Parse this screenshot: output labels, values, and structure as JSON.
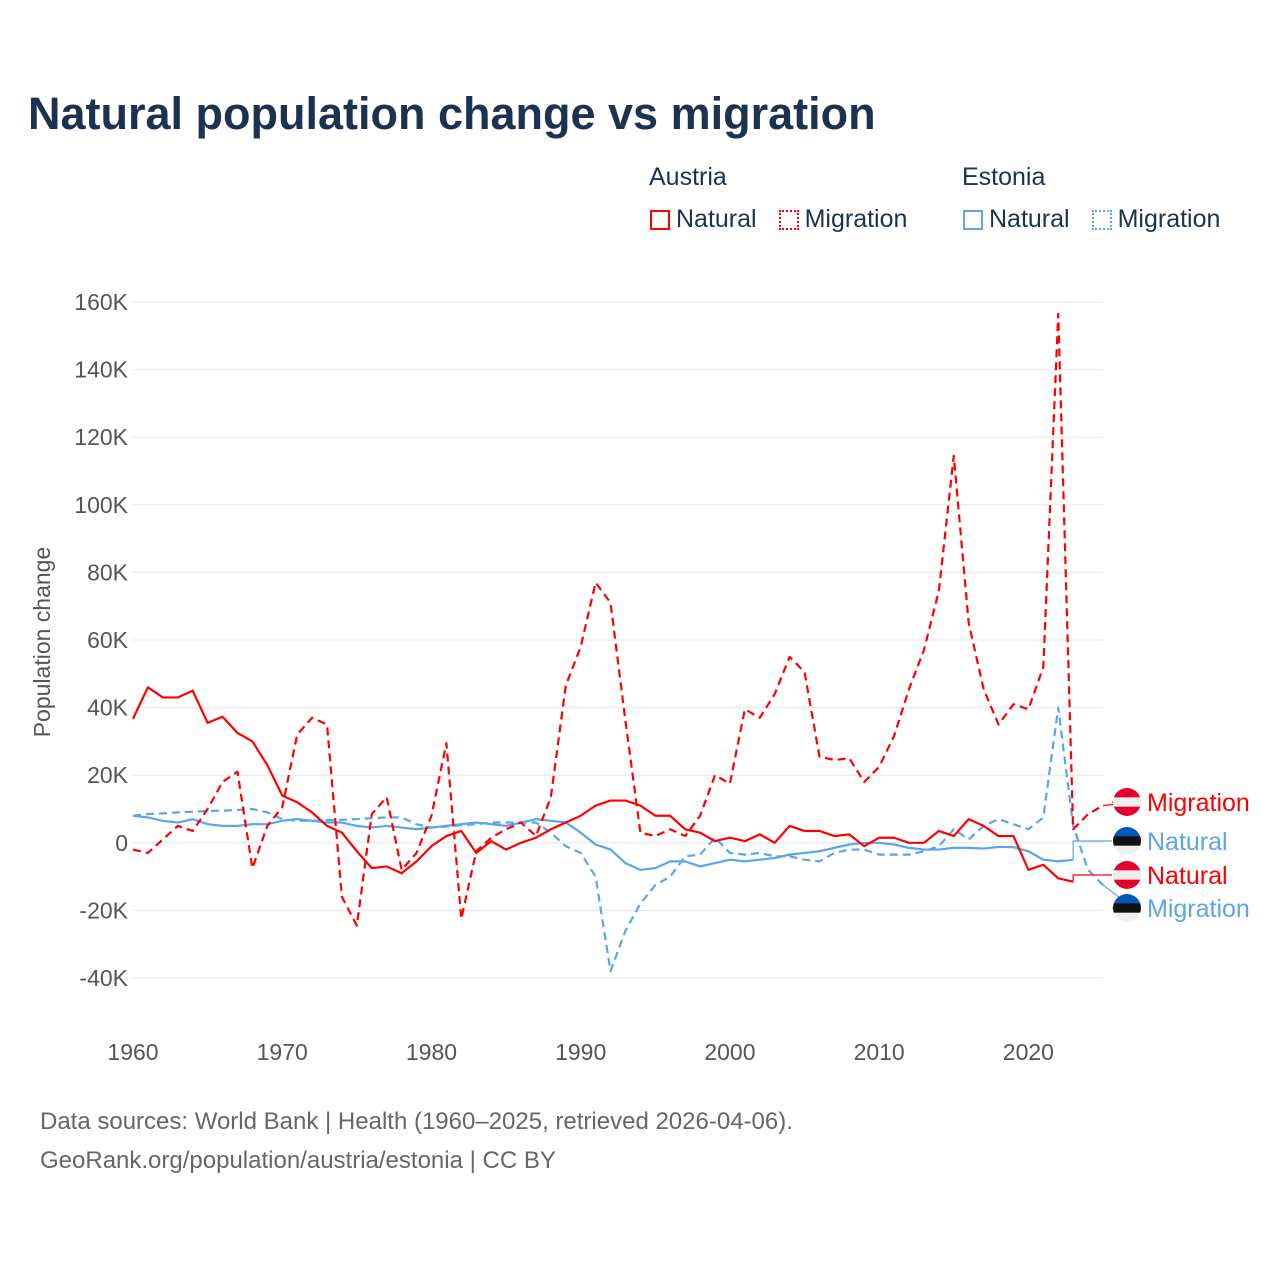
{
  "title": "Natural population change vs migration",
  "legend": {
    "groups": [
      {
        "name": "Austria",
        "items": [
          "Natural",
          "Migration"
        ]
      },
      {
        "name": "Estonia",
        "items": [
          "Natural",
          "Migration"
        ]
      }
    ]
  },
  "colors": {
    "austria": "#ff0000",
    "estonia": "#5aa5ec",
    "text": "#1b3250",
    "grid": "#e6e6e6"
  },
  "chart_data": {
    "type": "line",
    "title": "Natural population change vs migration",
    "xlabel": "",
    "ylabel": "Population change",
    "xlim": [
      1960,
      2025
    ],
    "ylim": [
      -40000,
      160000
    ],
    "x_ticks": [
      1960,
      1970,
      1980,
      1990,
      2000,
      2010,
      2020
    ],
    "x_tick_labels": [
      "1960",
      "1970",
      "1980",
      "1990",
      "2000",
      "2010",
      "2020"
    ],
    "y_ticks": [
      -40000,
      -20000,
      0,
      20000,
      40000,
      60000,
      80000,
      100000,
      120000,
      140000,
      160000
    ],
    "y_tick_labels": [
      "-40K",
      "-20K",
      "0",
      "20K",
      "40K",
      "60K",
      "80K",
      "100K",
      "120K",
      "140K",
      "160K"
    ],
    "grid": true,
    "x_start": 1960,
    "units": "thousands",
    "series": [
      {
        "name": "Austria Natural",
        "country": "austria",
        "dash": false,
        "end_label": "Natural",
        "values": [
          36.7,
          46,
          43,
          43,
          45,
          35.5,
          37.3,
          32.5,
          30,
          23,
          14,
          12,
          9,
          5,
          3,
          -2.5,
          -7.5,
          -7,
          -9,
          -5.5,
          -1,
          2,
          3.5,
          -3,
          0.5,
          -2,
          0,
          1.5,
          4,
          6,
          8,
          11,
          12.5,
          12.5,
          11,
          8,
          8,
          4,
          3,
          0.5,
          1.5,
          0.5,
          2.5,
          0,
          5,
          3.5,
          3.5,
          2,
          2.5,
          -1,
          1.5,
          1.5,
          0,
          0,
          3.5,
          2,
          7,
          5,
          2,
          2,
          -8,
          -6.5,
          -10.5,
          -11.5
        ]
      },
      {
        "name": "Austria Migration",
        "country": "austria",
        "dash": true,
        "end_label": "Migration",
        "values": [
          -2,
          -3,
          1,
          5,
          3.5,
          10,
          18,
          21,
          -7.5,
          5,
          10.5,
          32,
          37,
          35,
          -16,
          -24.5,
          8.5,
          13.5,
          -8,
          -3,
          8,
          29.5,
          -22.5,
          -2.5,
          1.5,
          4,
          6,
          2,
          13.5,
          46.5,
          58,
          77,
          71,
          36,
          3,
          2,
          4,
          2,
          8,
          20,
          17.5,
          39.5,
          37,
          44,
          55,
          50.5,
          25.5,
          24.5,
          25,
          18,
          22.5,
          31.6,
          45.5,
          57,
          74.5,
          114.5,
          65,
          45.5,
          35,
          41,
          39.5,
          52,
          156.5,
          4,
          8.5,
          11
        ]
      },
      {
        "name": "Estonia Natural",
        "country": "estonia",
        "dash": false,
        "end_label": "Natural",
        "values": [
          8,
          7.5,
          6.5,
          6,
          7,
          5.5,
          5,
          5,
          5.5,
          5.5,
          6.5,
          7,
          6.5,
          6,
          6,
          5,
          4.5,
          5,
          4.5,
          4,
          4.5,
          5,
          5.5,
          6,
          5.5,
          5,
          6,
          7,
          6.5,
          6,
          3,
          -0.5,
          -2,
          -6,
          -8,
          -7.5,
          -5.5,
          -5.5,
          -7,
          -6,
          -5,
          -5.5,
          -5,
          -4.5,
          -3.5,
          -3,
          -2.5,
          -1.5,
          -0.5,
          0,
          0,
          -0.5,
          -1.5,
          -2,
          -2,
          -1.5,
          -1.5,
          -1.7,
          -1.2,
          -1.3,
          -2.5,
          -5,
          -5.5,
          -5
        ]
      },
      {
        "name": "Estonia Migration",
        "country": "estonia",
        "dash": true,
        "end_label": "Migration",
        "values": [
          8,
          8.5,
          8.7,
          9,
          9.2,
          9.4,
          9.5,
          9.7,
          10,
          9,
          7,
          6.5,
          6.5,
          6.7,
          6.8,
          7,
          7.3,
          7.5,
          7.5,
          5.5,
          4.5,
          4.8,
          5.2,
          5.5,
          6,
          6,
          6,
          6,
          3,
          -1,
          -3,
          -10,
          -38,
          -26,
          -18,
          -12.5,
          -10,
          -4,
          -3.5,
          1.5,
          -3,
          -3.5,
          -3,
          -4,
          -4,
          -5,
          -5.5,
          -3,
          -2,
          -2,
          -3.5,
          -3.5,
          -3.5,
          -2.5,
          -1,
          4,
          1,
          5,
          7,
          5.5,
          4,
          7.5,
          40,
          5,
          -8,
          -12.5
        ]
      }
    ]
  },
  "footer": {
    "line1": "Data sources: World Bank | Health (1960–2025, retrieved 2026-04-06).",
    "line2": "GeoRank.org/population/austria/estonia | CC BY"
  }
}
